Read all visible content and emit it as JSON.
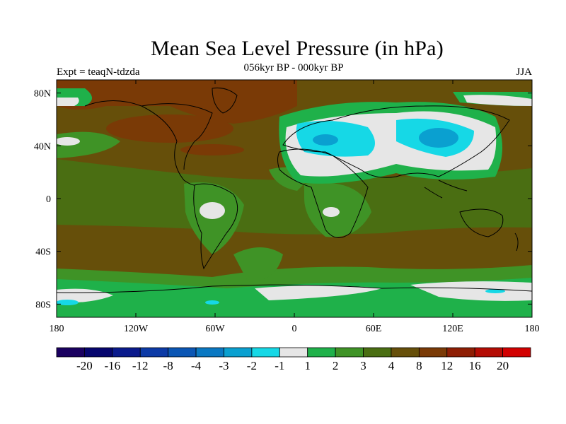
{
  "title": "Mean Sea Level Pressure (in hPa)",
  "subtitle": "056kyr BP - 000kyr BP",
  "left_label": "Expt = teaqN-tdzda",
  "right_label": "JJA",
  "lat_ticks": [
    "80N",
    "40N",
    "0",
    "40S",
    "80S"
  ],
  "lon_ticks": [
    "180",
    "120W",
    "60W",
    "0",
    "60E",
    "120E",
    "180"
  ],
  "colorbar": {
    "colors": [
      "#1a0060",
      "#06056e",
      "#0a1a8c",
      "#0c3aa6",
      "#0b56b4",
      "#0a78c2",
      "#0aa0d0",
      "#16d8e6",
      "#e6e6e6",
      "#1fb14a",
      "#3f9326",
      "#4a6e12",
      "#664f0a",
      "#7a3a06",
      "#8e1e04",
      "#b40c04",
      "#d20000"
    ],
    "labels": [
      "-20",
      "-16",
      "-12",
      "-8",
      "-4",
      "-3",
      "-2",
      "-1",
      "1",
      "2",
      "3",
      "4",
      "8",
      "12",
      "16",
      "20"
    ]
  },
  "palette": {
    "land_brown": "#664f0a",
    "olive": "#4a6e12",
    "green": "#3f9326",
    "bright_green": "#1fb14a",
    "white_grey": "#e6e6e6",
    "cyan": "#16d8e6",
    "sky_blue": "#0aa0d0",
    "mid_blue": "#0a78c2",
    "dark_rust": "#7a3a06"
  }
}
